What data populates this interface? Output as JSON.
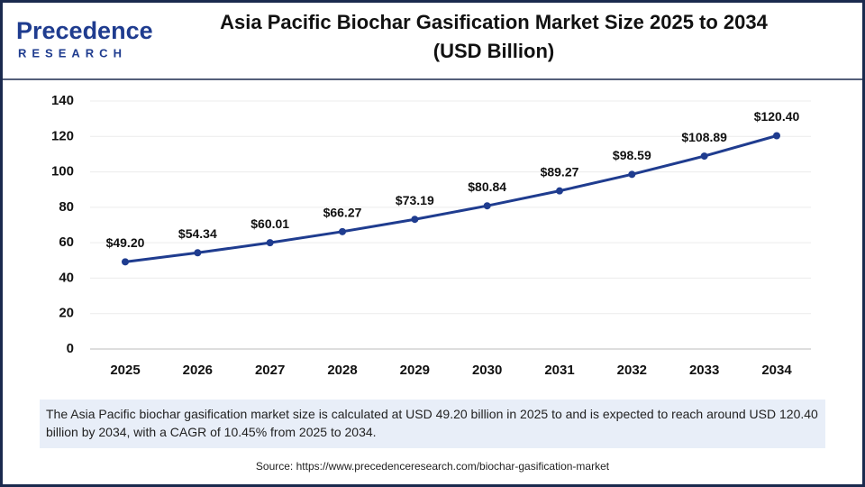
{
  "logo": {
    "name": "Precedence",
    "sub": "RESEARCH"
  },
  "chart_data": {
    "type": "line",
    "title": [
      "Asia Pacific Biochar Gasification Market Size 2025 to 2034",
      "(USD Billion)"
    ],
    "categories": [
      "2025",
      "2026",
      "2027",
      "2028",
      "2029",
      "2030",
      "2031",
      "2032",
      "2033",
      "2034"
    ],
    "values": [
      49.2,
      54.34,
      60.01,
      66.27,
      73.19,
      80.84,
      89.27,
      98.59,
      108.89,
      120.4
    ],
    "value_labels": [
      "$49.20",
      "$54.34",
      "$60.01",
      "$66.27",
      "$73.19",
      "$80.84",
      "$89.27",
      "$98.59",
      "$108.89",
      "$120.40"
    ],
    "color": "#1f3c8f",
    "ylim": [
      0,
      140
    ],
    "yticks": [
      0,
      20,
      40,
      60,
      80,
      100,
      120,
      140
    ],
    "grid": true
  },
  "description": "The Asia Pacific biochar gasification market size is calculated at USD 49.20 billion in 2025 to and is expected to reach around USD 120.40 billion by 2034, with a CAGR of 10.45% from 2025 to 2034.",
  "source": "Source: https://www.precedenceresearch.com/biochar-gasification-market"
}
